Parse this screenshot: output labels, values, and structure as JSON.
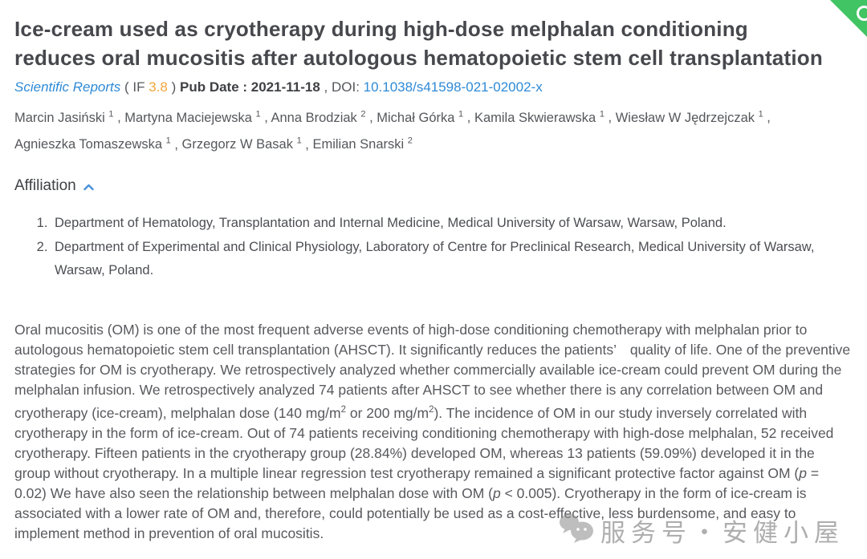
{
  "title": {
    "line1": "Ice-cream used as cryotherapy during high-dose melphalan conditioning",
    "line2": "reduces oral mucositis after autologous hematopoietic stem cell transplantation"
  },
  "meta": {
    "journal": "Scientific Reports",
    "if_prefix": " ( IF ",
    "if_value": "3.8",
    "if_suffix": " ) ",
    "pub_date": "Pub Date : 2021-11-18",
    "doi_sep": " , DOI: ",
    "doi": "10.1038/s41598-021-02002-x"
  },
  "authors": [
    {
      "name": "Marcin Jasiński",
      "aff": "1"
    },
    {
      "name": "Martyna Maciejewska",
      "aff": "1"
    },
    {
      "name": "Anna Brodziak",
      "aff": "2"
    },
    {
      "name": "Michał Górka",
      "aff": "1"
    },
    {
      "name": "Kamila Skwierawska",
      "aff": "1"
    },
    {
      "name": "Wiesław W Jędrzejczak",
      "aff": "1"
    },
    {
      "name": "Agnieszka Tomaszewska",
      "aff": "1"
    },
    {
      "name": "Grzegorz W Basak",
      "aff": "1"
    },
    {
      "name": "Emilian Snarski",
      "aff": "2"
    }
  ],
  "affiliation": {
    "heading": "Affiliation",
    "items": [
      "Department of Hematology, Transplantation and Internal Medicine, Medical University of Warsaw, Warsaw, Poland.",
      "Department of Experimental and Clinical Physiology, Laboratory of Centre for Preclinical Research, Medical University of Warsaw, Warsaw, Poland."
    ]
  },
  "abstract_segments": [
    {
      "t": "Oral mucositis (OM) is one of the most frequent adverse events of high-dose conditioning chemotherapy with melphalan prior to autologous hematopoietic stem cell transplantation (AHSCT). It significantly reduces the patients’　quality of life. One of the preventive strategies for OM is cryotherapy. We retrospectively analyzed whether commercially available ice-cream could prevent OM during the melphalan infusion. We retrospectively analyzed 74 patients after AHSCT to see whether there is any correlation between OM and cryotherapy (ice-cream), melphalan dose (140 mg/m"
    },
    {
      "t": "2",
      "s": "sup"
    },
    {
      "t": " or 200 mg/m"
    },
    {
      "t": "2",
      "s": "sup"
    },
    {
      "t": "). The incidence of OM in our study inversely correlated with cryotherapy in the form of ice-cream. Out of 74 patients receiving conditioning chemotherapy with high-dose melphalan, 52 received cryotherapy. Fifteen patients in the cryotherapy group (28.84%) developed OM, whereas 13 patients (59.09%) developed it in the group without cryotherapy. In a multiple linear regression test cryotherapy remained a significant protective factor against OM ("
    },
    {
      "t": "p",
      "s": "i"
    },
    {
      "t": " = 0.02) We have also seen the relationship between melphalan dose with OM ("
    },
    {
      "t": "p",
      "s": "i"
    },
    {
      "t": " < 0.005). Cryotherapy in the form of ice-cream is associated with a lower rate of OM and, therefore, could potentially be used as a cost-effective, less burdensome, and easy to implement method in prevention of oral mucositis."
    }
  ],
  "watermark": {
    "text": "服务号・安健小屋"
  },
  "colors": {
    "ribbon_green": "#41c463",
    "link_blue": "#2e8ad6",
    "if_orange": "#f0a63c",
    "title_gray": "#47484d",
    "body_gray": "#58595d",
    "chevron_blue": "#4a90d9",
    "watermark_gray": "#7d7d7d"
  }
}
